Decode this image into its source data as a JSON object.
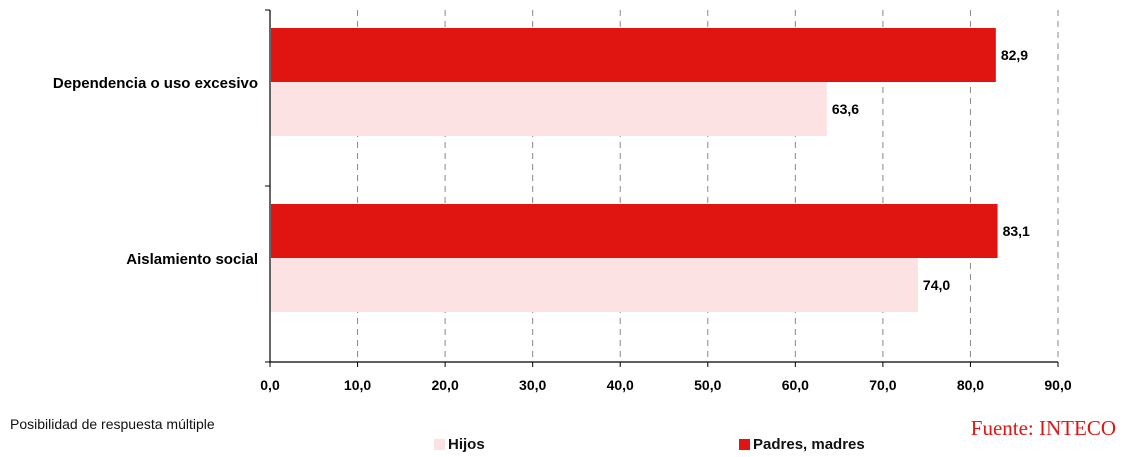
{
  "chart_data": {
    "type": "bar",
    "orientation": "horizontal",
    "categories": [
      "Dependencia o uso excesivo",
      "Aislamiento social"
    ],
    "series": [
      {
        "name": "Padres, madres",
        "color": "#e01512",
        "values": [
          82.9,
          83.1
        ],
        "labels": [
          "82,9",
          "83,1"
        ]
      },
      {
        "name": "Hijos",
        "color": "#fde2e3",
        "values": [
          63.6,
          74.0
        ],
        "labels": [
          "63,6",
          "74,0"
        ]
      }
    ],
    "xlim": [
      0,
      90
    ],
    "xticks": [
      0,
      10,
      20,
      30,
      40,
      50,
      60,
      70,
      80,
      90
    ],
    "xtick_labels": [
      "0,0",
      "10,0",
      "20,0",
      "30,0",
      "40,0",
      "50,0",
      "60,0",
      "70,0",
      "80,0",
      "90,0"
    ],
    "grid": "vertical dashed"
  },
  "note": "Posibilidad de respuesta múltiple",
  "legend": [
    {
      "label": "Hijos",
      "color": "#fde2e3"
    },
    {
      "label": "Padres, madres",
      "color": "#e01512"
    }
  ],
  "source": {
    "text": "Fuente: INTECO",
    "color": "#e01512"
  }
}
